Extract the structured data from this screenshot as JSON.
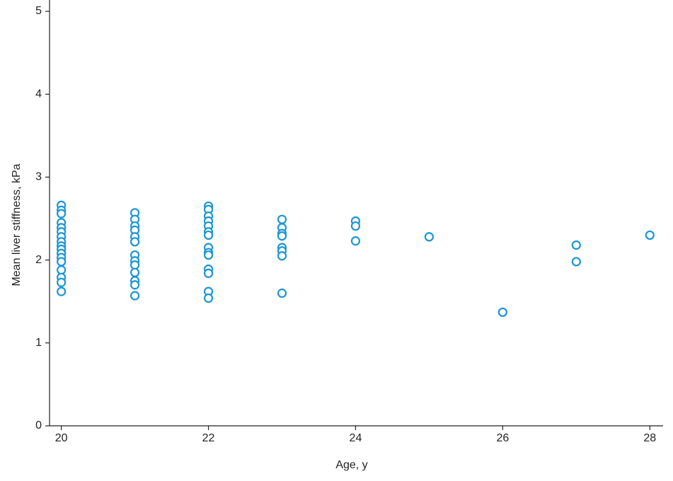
{
  "chart_data": {
    "type": "scatter",
    "x_label": "Age, y",
    "y_label": "Mean liver stiffness, kPa",
    "color": "#1b96d4",
    "xlim": [
      19.84,
      28.18
    ],
    "ylim": [
      0,
      5
    ],
    "xticks": [
      20,
      22,
      24,
      26,
      28
    ],
    "yticks": [
      0,
      1,
      2,
      3,
      4,
      5
    ],
    "x": [
      20,
      20,
      20,
      20,
      20,
      20,
      20,
      20,
      20,
      20,
      20,
      20,
      20,
      20,
      20,
      20,
      20,
      21,
      21,
      21,
      21,
      21,
      21,
      21,
      21,
      21,
      21,
      21,
      21,
      21,
      22,
      22,
      22,
      22,
      22,
      22,
      22,
      22,
      22,
      22,
      22,
      22,
      22,
      22,
      23,
      23,
      23,
      23,
      23,
      23,
      23,
      23,
      24,
      24,
      24,
      25,
      26,
      27,
      27,
      28
    ],
    "values": [
      2.66,
      2.6,
      2.56,
      2.45,
      2.39,
      2.34,
      2.28,
      2.22,
      2.17,
      2.13,
      2.08,
      2.03,
      1.98,
      1.88,
      1.79,
      1.73,
      1.62,
      2.57,
      2.49,
      2.41,
      2.36,
      2.28,
      2.22,
      2.06,
      1.99,
      1.94,
      1.85,
      1.75,
      1.7,
      1.57,
      2.65,
      2.61,
      2.53,
      2.47,
      2.41,
      2.34,
      2.3,
      2.15,
      2.09,
      2.06,
      1.89,
      1.84,
      1.62,
      1.54,
      2.49,
      2.39,
      2.32,
      2.29,
      2.15,
      2.11,
      2.05,
      1.6,
      2.47,
      2.41,
      2.23,
      2.28,
      1.37,
      2.18,
      1.98,
      2.3
    ]
  }
}
